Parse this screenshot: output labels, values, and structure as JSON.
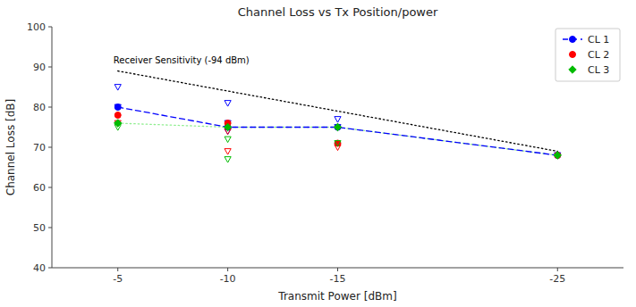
{
  "chart_data": {
    "type": "scatter",
    "title": "Channel Loss vs Tx Position/power",
    "xlabel": "Transmit Power [dBm]",
    "ylabel": "Channel Loss [dB]",
    "xlim": [
      -2,
      -28
    ],
    "ylim": [
      40,
      100
    ],
    "xticks": [
      -5,
      -10,
      -15,
      -25
    ],
    "yticks": [
      40,
      50,
      60,
      70,
      80,
      90,
      100
    ],
    "grid": false,
    "legend": "upper right",
    "annotations": [
      {
        "text": "Receiver Sensitivity (-94 dBm)",
        "x": -4.8,
        "y": 90.5
      }
    ],
    "series": [
      {
        "type": "line",
        "color": "#000000",
        "line_style": "dotted",
        "marker": "none",
        "x": [
          -5,
          -25
        ],
        "values": [
          89,
          69
        ]
      },
      {
        "type": "line",
        "color": "#90ee90",
        "line_style": "dotted",
        "marker": "none",
        "x": [
          -5,
          -10,
          -15,
          -25
        ],
        "values": [
          76,
          75,
          75,
          68
        ]
      },
      {
        "name": "CL 1",
        "type": "line",
        "color": "#0000ff",
        "line_style": "dashed",
        "marker": "circle",
        "x": [
          -5,
          -10,
          -15,
          -25
        ],
        "values": [
          80,
          75,
          75,
          68
        ]
      },
      {
        "type": "scatter",
        "color": "#0000ff",
        "line_style": "none",
        "marker": "triangle-down-open",
        "x": [
          -5,
          -5,
          -10,
          -10,
          -10,
          -15,
          -15,
          -25
        ],
        "values": [
          85,
          80,
          81,
          76,
          74,
          77,
          75,
          68
        ]
      },
      {
        "name": "CL 2",
        "type": "scatter",
        "color": "#ff0000",
        "line_style": "none",
        "marker": "circle",
        "x": [
          -5,
          -10,
          -15,
          -25
        ],
        "values": [
          78,
          76,
          71,
          68
        ]
      },
      {
        "type": "scatter",
        "color": "#ff0000",
        "line_style": "none",
        "marker": "triangle-down-open",
        "x": [
          -5,
          -10,
          -10,
          -15
        ],
        "values": [
          76,
          74,
          69,
          70
        ]
      },
      {
        "name": "CL 3",
        "type": "scatter",
        "color": "#00bb00",
        "line_style": "none",
        "marker": "diamond",
        "x": [
          -5,
          -10,
          -15,
          -25
        ],
        "values": [
          76,
          75,
          75,
          68
        ]
      },
      {
        "type": "scatter",
        "color": "#00bb00",
        "line_style": "none",
        "marker": "triangle-down-open",
        "x": [
          -5,
          -10,
          -10,
          -15
        ],
        "values": [
          75,
          72,
          67,
          71
        ]
      }
    ]
  }
}
